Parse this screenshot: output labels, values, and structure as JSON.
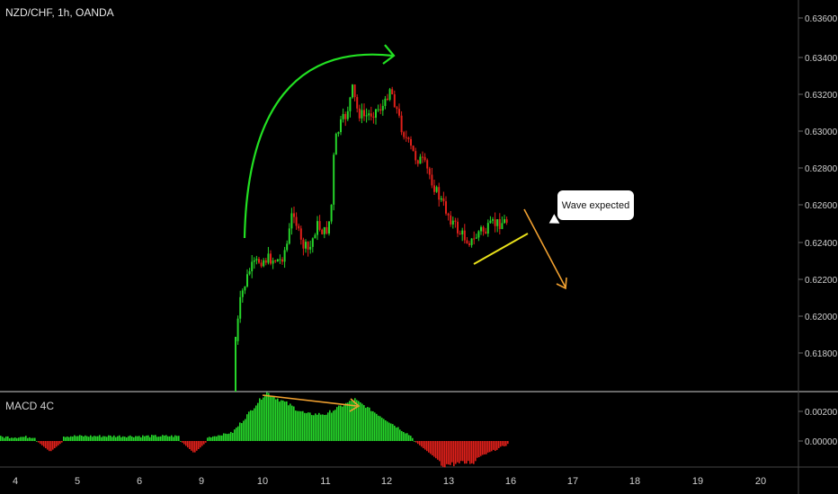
{
  "header": {
    "title": "NZD/CHF, 1h, OANDA"
  },
  "indicator": {
    "label": "MACD 4C"
  },
  "annotation": {
    "callout_text": "Wave expected"
  },
  "price_axis": {
    "labels": [
      "0.63600",
      "0.63400",
      "0.63200",
      "0.63000",
      "0.62800",
      "0.62600",
      "0.62400",
      "0.62200",
      "0.62000",
      "0.61800"
    ]
  },
  "indicator_axis": {
    "labels": [
      "0.00200",
      "0.00000"
    ]
  },
  "time_axis": {
    "labels": [
      "4",
      "5",
      "6",
      "9",
      "10",
      "11",
      "12",
      "13",
      "16",
      "17",
      "18",
      "19",
      "20"
    ]
  },
  "colors": {
    "up": "#26d52a",
    "down": "#e0201a",
    "arrow_green": "#22e022",
    "arrow_orange": "#f0a030",
    "trendline": "#e8e01a",
    "separator": "#d0d0d0"
  }
}
